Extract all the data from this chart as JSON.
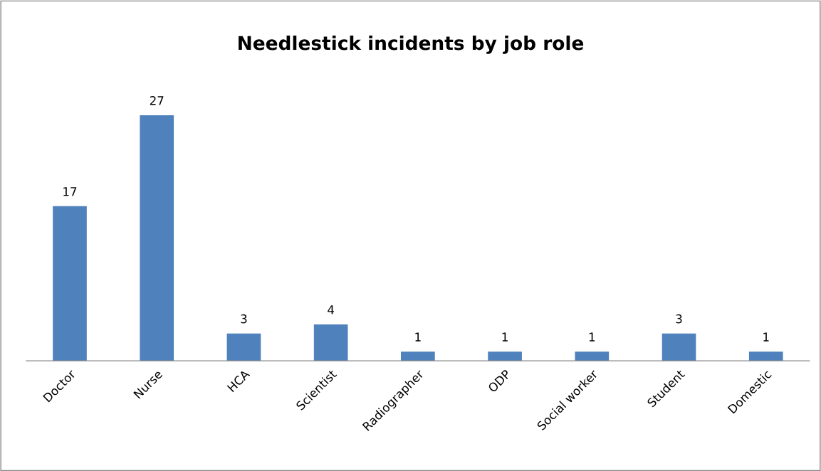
{
  "chart_data": {
    "type": "bar",
    "title": "Needlestick incidents by job role",
    "categories": [
      "Doctor",
      "Nurse",
      "HCA",
      "Scientist",
      "Radiographer",
      "ODP",
      "Social worker",
      "Student",
      "Domestic"
    ],
    "values": [
      17,
      27,
      3,
      4,
      1,
      1,
      1,
      3,
      1
    ],
    "color": "#4f81bd",
    "data_labels": true
  }
}
